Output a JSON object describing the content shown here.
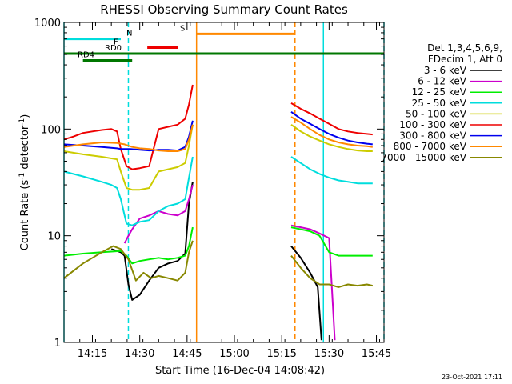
{
  "chart_data": {
    "type": "line",
    "title": "RHESSI Observing Summary Count Rates",
    "xlabel": "Start Time (16-Dec-04 14:08:42)",
    "ylabel": "Count Rate (s",
    "ylabel_sup": "-1",
    "ylabel_tail": " detector",
    "ylabel_sup2": "-1",
    "ylabel_close": ")",
    "yscale": "log",
    "ylim": [
      1,
      1000
    ],
    "xlim_minutes": [
      14.1,
      15.79
    ],
    "y_ticks": [
      {
        "v": 1,
        "label": "1"
      },
      {
        "v": 10,
        "label": "10"
      },
      {
        "v": 100,
        "label": "100"
      },
      {
        "v": 1000,
        "label": "1000"
      }
    ],
    "x_ticks": [
      {
        "v": 14.25,
        "label": "14:15"
      },
      {
        "v": 14.5,
        "label": "14:30"
      },
      {
        "v": 14.75,
        "label": "14:45"
      },
      {
        "v": 15.0,
        "label": "15:00"
      },
      {
        "v": 15.25,
        "label": "15:15"
      },
      {
        "v": 15.5,
        "label": "15:30"
      },
      {
        "v": 15.75,
        "label": "15:45"
      }
    ],
    "legend_header": [
      "Det 1,3,4,5,6,9,",
      "FDecim 1, Att 0"
    ],
    "legend_placement": "right",
    "footer_date": "23-Oct-2021 17:11",
    "series": [
      {
        "name": "3 - 6 keV",
        "color": "#000000",
        "segments": [
          [
            [
              14.35,
              7.5
            ],
            [
              14.4,
              7.0
            ],
            [
              14.42,
              6.5
            ],
            [
              14.44,
              3.5
            ],
            [
              14.46,
              2.5
            ],
            [
              14.5,
              2.8
            ],
            [
              14.55,
              3.8
            ],
            [
              14.6,
              5.0
            ],
            [
              14.65,
              5.5
            ],
            [
              14.7,
              5.8
            ],
            [
              14.74,
              6.8
            ],
            [
              14.76,
              20
            ],
            [
              14.78,
              32
            ]
          ],
          [
            [
              15.3,
              8.0
            ],
            [
              15.35,
              6.2
            ],
            [
              15.4,
              4.5
            ],
            [
              15.44,
              3.3
            ],
            [
              15.46,
              1.05
            ]
          ]
        ]
      },
      {
        "name": "6 - 12 keV",
        "color": "#cc00cc",
        "segments": [
          [
            [
              14.42,
              8.5
            ],
            [
              14.44,
              10
            ],
            [
              14.46,
              11.5
            ],
            [
              14.5,
              14.5
            ],
            [
              14.55,
              15.5
            ],
            [
              14.6,
              17
            ],
            [
              14.65,
              16
            ],
            [
              14.7,
              15.5
            ],
            [
              14.74,
              17
            ],
            [
              14.76,
              22
            ],
            [
              14.78,
              30
            ]
          ],
          [
            [
              15.3,
              12.5
            ],
            [
              15.35,
              12.0
            ],
            [
              15.4,
              11.5
            ],
            [
              15.45,
              10.5
            ],
            [
              15.5,
              9.5
            ],
            [
              15.53,
              1.05
            ]
          ]
        ]
      },
      {
        "name": "12 - 25 keV",
        "color": "#00ee00",
        "segments": [
          [
            [
              14.1,
              6.5
            ],
            [
              14.2,
              6.8
            ],
            [
              14.3,
              7.0
            ],
            [
              14.4,
              7.2
            ],
            [
              14.43,
              6.5
            ],
            [
              14.46,
              5.5
            ],
            [
              14.5,
              5.8
            ],
            [
              14.55,
              6.0
            ],
            [
              14.6,
              6.2
            ],
            [
              14.65,
              6.0
            ],
            [
              14.7,
              6.2
            ],
            [
              14.74,
              6.5
            ],
            [
              14.76,
              8.0
            ],
            [
              14.78,
              12
            ]
          ],
          [
            [
              15.3,
              12.0
            ],
            [
              15.35,
              11.5
            ],
            [
              15.4,
              11.0
            ],
            [
              15.45,
              10.0
            ],
            [
              15.5,
              7.0
            ],
            [
              15.55,
              6.5
            ],
            [
              15.6,
              6.5
            ],
            [
              15.65,
              6.5
            ],
            [
              15.7,
              6.5
            ],
            [
              15.73,
              6.5
            ]
          ]
        ]
      },
      {
        "name": "25 - 50 keV",
        "color": "#00dddd",
        "segments": [
          [
            [
              14.1,
              40
            ],
            [
              14.2,
              36
            ],
            [
              14.3,
              32
            ],
            [
              14.35,
              30
            ],
            [
              14.38,
              28
            ],
            [
              14.4,
              22
            ],
            [
              14.43,
              13
            ],
            [
              14.46,
              12.5
            ],
            [
              14.5,
              13.5
            ],
            [
              14.55,
              14
            ],
            [
              14.6,
              17
            ],
            [
              14.65,
              19
            ],
            [
              14.7,
              20
            ],
            [
              14.74,
              22
            ],
            [
              14.76,
              35
            ],
            [
              14.78,
              55
            ]
          ],
          [
            [
              15.3,
              55
            ],
            [
              15.35,
              48
            ],
            [
              15.4,
              42
            ],
            [
              15.45,
              38
            ],
            [
              15.5,
              35
            ],
            [
              15.55,
              33
            ],
            [
              15.6,
              32
            ],
            [
              15.65,
              31
            ],
            [
              15.7,
              31
            ],
            [
              15.73,
              31
            ]
          ]
        ]
      },
      {
        "name": "50 - 100 keV",
        "color": "#cccc00",
        "segments": [
          [
            [
              14.1,
              62
            ],
            [
              14.2,
              58
            ],
            [
              14.3,
              55
            ],
            [
              14.38,
              52
            ],
            [
              14.4,
              40
            ],
            [
              14.43,
              28
            ],
            [
              14.46,
              27
            ],
            [
              14.5,
              27
            ],
            [
              14.55,
              28
            ],
            [
              14.6,
              40
            ],
            [
              14.65,
              42
            ],
            [
              14.7,
              44
            ],
            [
              14.74,
              48
            ],
            [
              14.76,
              70
            ],
            [
              14.78,
              110
            ]
          ],
          [
            [
              15.3,
              110
            ],
            [
              15.35,
              95
            ],
            [
              15.4,
              85
            ],
            [
              15.45,
              78
            ],
            [
              15.5,
              72
            ],
            [
              15.55,
              68
            ],
            [
              15.6,
              65
            ],
            [
              15.65,
              63
            ],
            [
              15.7,
              62
            ],
            [
              15.73,
              62
            ]
          ]
        ]
      },
      {
        "name": "100 - 300 keV",
        "color": "#ee0000",
        "segments": [
          [
            [
              14.1,
              80
            ],
            [
              14.15,
              85
            ],
            [
              14.2,
              92
            ],
            [
              14.25,
              95
            ],
            [
              14.3,
              98
            ],
            [
              14.35,
              100
            ],
            [
              14.38,
              95
            ],
            [
              14.4,
              65
            ],
            [
              14.43,
              45
            ],
            [
              14.46,
              42
            ],
            [
              14.5,
              43
            ],
            [
              14.55,
              45
            ],
            [
              14.6,
              100
            ],
            [
              14.65,
              105
            ],
            [
              14.7,
              110
            ],
            [
              14.74,
              125
            ],
            [
              14.76,
              170
            ],
            [
              14.78,
              260
            ]
          ],
          [
            [
              15.3,
              175
            ],
            [
              15.35,
              155
            ],
            [
              15.4,
              140
            ],
            [
              15.45,
              125
            ],
            [
              15.5,
              112
            ],
            [
              15.55,
              100
            ],
            [
              15.6,
              95
            ],
            [
              15.65,
              92
            ],
            [
              15.7,
              90
            ],
            [
              15.73,
              89
            ]
          ]
        ]
      },
      {
        "name": "300 - 800 keV",
        "color": "#0000ee",
        "segments": [
          [
            [
              14.1,
              72
            ],
            [
              14.2,
              70
            ],
            [
              14.3,
              68
            ],
            [
              14.38,
              66
            ],
            [
              14.4,
              65
            ],
            [
              14.45,
              65
            ],
            [
              14.5,
              64
            ],
            [
              14.55,
              63
            ],
            [
              14.6,
              64
            ],
            [
              14.65,
              64
            ],
            [
              14.7,
              63
            ],
            [
              14.74,
              68
            ],
            [
              14.76,
              85
            ],
            [
              14.78,
              120
            ]
          ],
          [
            [
              15.3,
              145
            ],
            [
              15.35,
              125
            ],
            [
              15.4,
              112
            ],
            [
              15.45,
              100
            ],
            [
              15.5,
              90
            ],
            [
              15.55,
              83
            ],
            [
              15.6,
              78
            ],
            [
              15.65,
              75
            ],
            [
              15.7,
              73
            ],
            [
              15.73,
              72
            ]
          ]
        ]
      },
      {
        "name": "800 - 7000 keV",
        "color": "#ff8800",
        "segments": [
          [
            [
              14.1,
              68
            ],
            [
              14.2,
              72
            ],
            [
              14.3,
              75
            ],
            [
              14.38,
              74
            ],
            [
              14.42,
              72
            ],
            [
              14.46,
              68
            ],
            [
              14.5,
              66
            ],
            [
              14.55,
              65
            ],
            [
              14.6,
              63
            ],
            [
              14.65,
              62
            ],
            [
              14.7,
              62
            ],
            [
              14.74,
              65
            ],
            [
              14.76,
              80
            ],
            [
              14.78,
              110
            ]
          ],
          [
            [
              15.3,
              130
            ],
            [
              15.35,
              115
            ],
            [
              15.4,
              100
            ],
            [
              15.45,
              88
            ],
            [
              15.5,
              80
            ],
            [
              15.55,
              75
            ],
            [
              15.6,
              72
            ],
            [
              15.65,
              70
            ],
            [
              15.7,
              69
            ],
            [
              15.73,
              68
            ]
          ]
        ]
      },
      {
        "name": "7000 - 15000 keV",
        "color": "#888800",
        "segments": [
          [
            [
              14.1,
              4.0
            ],
            [
              14.2,
              5.5
            ],
            [
              14.3,
              7.0
            ],
            [
              14.36,
              8.0
            ],
            [
              14.4,
              7.5
            ],
            [
              14.44,
              6.0
            ],
            [
              14.48,
              3.8
            ],
            [
              14.52,
              4.5
            ],
            [
              14.56,
              4.0
            ],
            [
              14.6,
              4.2
            ],
            [
              14.65,
              4.0
            ],
            [
              14.7,
              3.8
            ],
            [
              14.74,
              4.5
            ],
            [
              14.76,
              7
            ],
            [
              14.78,
              9
            ]
          ],
          [
            [
              15.3,
              6.5
            ],
            [
              15.35,
              5.0
            ],
            [
              15.4,
              4.0
            ],
            [
              15.45,
              3.5
            ],
            [
              15.5,
              3.5
            ],
            [
              15.55,
              3.3
            ],
            [
              15.6,
              3.5
            ],
            [
              15.65,
              3.4
            ],
            [
              15.7,
              3.5
            ],
            [
              15.73,
              3.4
            ]
          ]
        ]
      }
    ],
    "event_bars": [
      {
        "label": "N",
        "color": "#00dddd",
        "x0": 14.1,
        "x1": 14.4,
        "y": 700
      },
      {
        "label": "F",
        "color": "#ee0000",
        "x0": 14.54,
        "x1": 14.7,
        "y": 580
      },
      {
        "label": "S",
        "color": "#ff8800",
        "x0": 14.8,
        "x1": 15.32,
        "y": 780
      },
      {
        "label": "RD0",
        "color": "#007700",
        "x0": 14.1,
        "x1": 15.79,
        "y": 510
      },
      {
        "label": "RD4",
        "color": "#007700",
        "x0": 14.2,
        "x1": 14.46,
        "y": 440
      }
    ],
    "vertical_lines": [
      {
        "x": 14.1,
        "color": "#00dddd",
        "style": "solid"
      },
      {
        "x": 14.44,
        "color": "#00dddd",
        "style": "dashed"
      },
      {
        "x": 14.8,
        "color": "#ff8800",
        "style": "solid"
      },
      {
        "x": 15.32,
        "color": "#ff8800",
        "style": "dashed"
      },
      {
        "x": 15.47,
        "color": "#00dddd",
        "style": "solid"
      },
      {
        "x": 15.79,
        "color": "#00dddd",
        "style": "dashed"
      }
    ]
  }
}
